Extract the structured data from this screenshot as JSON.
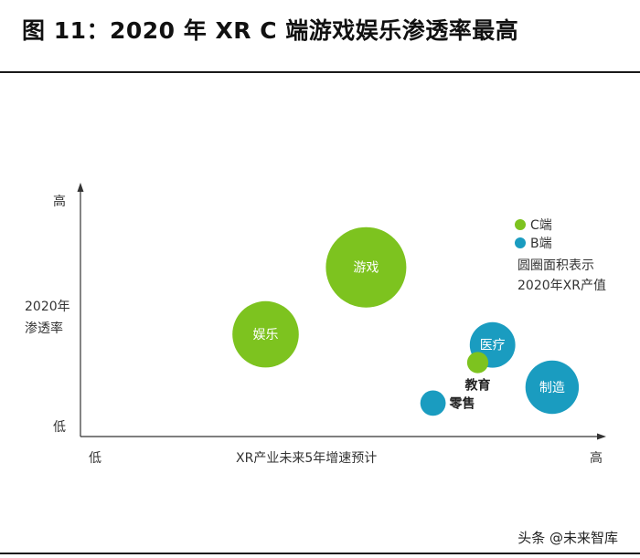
{
  "figure": {
    "title": "图 11：2020 年 XR C 端游戏娱乐渗透率最高"
  },
  "watermark": {
    "text": "头条 @未来智库"
  },
  "colors": {
    "c_segment": "#7dc31f",
    "b_segment": "#1a9cc0",
    "axis": "#333333",
    "rule": "#1a1a1a"
  },
  "chart_data": {
    "type": "scatter",
    "subtype": "bubble",
    "xlabel": "XR产业未来5年增速预计",
    "ylabel": [
      "2020年",
      "渗透率"
    ],
    "x_tick_labels": {
      "low": "低",
      "high": "高"
    },
    "y_tick_labels": {
      "low": "低",
      "high": "高"
    },
    "xlim": [
      0,
      100
    ],
    "ylim": [
      0,
      100
    ],
    "legend": {
      "position": "top-right",
      "entries": [
        {
          "name": "C端",
          "color": "#7dc31f"
        },
        {
          "name": "B端",
          "color": "#1a9cc0"
        }
      ],
      "note": [
        "圆圈面积表示",
        "2020年XR产值"
      ]
    },
    "bubbles": [
      {
        "label": "游戏",
        "segment": "C端",
        "x": 48,
        "y": 82,
        "size": 100,
        "label_position": "inside"
      },
      {
        "label": "娱乐",
        "segment": "C端",
        "x": 21,
        "y": 44,
        "size": 68,
        "label_position": "inside"
      },
      {
        "label": "医疗",
        "segment": "B端",
        "x": 82,
        "y": 38,
        "size": 32,
        "label_position": "inside"
      },
      {
        "label": "教育",
        "segment": "C端",
        "x": 78,
        "y": 28,
        "size": 7,
        "label_position": "below"
      },
      {
        "label": "制造",
        "segment": "B端",
        "x": 98,
        "y": 14,
        "size": 44,
        "label_position": "inside"
      },
      {
        "label": "零售",
        "segment": "B端",
        "x": 66,
        "y": 5,
        "size": 10,
        "label_position": "right"
      }
    ]
  }
}
